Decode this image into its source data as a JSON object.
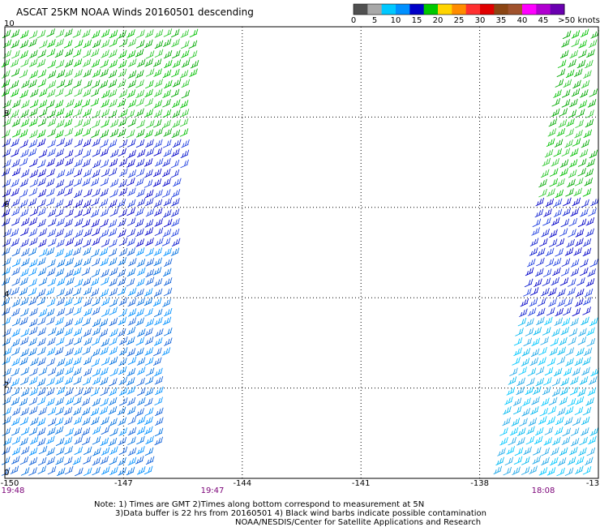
{
  "title": "ASCAT 25KM NOAA Winds 20160501 descending",
  "colorbar": {
    "labels": [
      "0",
      "5",
      "10",
      "15",
      "20",
      "25",
      "30",
      "35",
      "40",
      "45",
      ">50 knots"
    ],
    "colors": [
      "#505050",
      "#a8a8a8",
      "#00c8ff",
      "#0090ff",
      "#0000c8",
      "#00c800",
      "#ffd400",
      "#ff8c00",
      "#ff3030",
      "#e00000",
      "#8b4513",
      "#a0522d",
      "#ff00ff",
      "#b000d0",
      "#6a00b0"
    ]
  },
  "notes": {
    "line1": "Note: 1) Times are GMT 2)Times along bottom correspond to measurement at 5N",
    "line2": "3)Data buffer is 22 hrs from 20160501 4) Black wind barbs indicate possible contamination",
    "line3": "NOAA/NESDIS/Center for Satellite Applications and Research"
  },
  "times": {
    "t1": "19:48",
    "t2": "19:47",
    "t3": "18:08"
  },
  "chart_data": {
    "type": "scatter",
    "title": "ASCAT 25KM NOAA Winds 20160501 descending",
    "xlabel": "",
    "ylabel": "",
    "xlim": [
      -150,
      -135
    ],
    "ylim": [
      0,
      10
    ],
    "xticks": [
      "-150",
      "-147",
      "-144",
      "-141",
      "-138",
      "-13"
    ],
    "yticks": [
      "0",
      "2",
      "4",
      "6",
      "8",
      "10"
    ],
    "grid": true,
    "legend": "colorbar top-right",
    "swath_times": [
      "19:48",
      "19:47",
      "18:08"
    ],
    "series": [
      {
        "swath": "west",
        "lon_range": [
          -150,
          -146.1
        ],
        "wind_speed_knots_by_lat": [
          {
            "lat_range": [
              7.5,
              10
            ],
            "speed": [
              15,
              20
            ],
            "color": "green"
          },
          {
            "lat_range": [
              5,
              7.5
            ],
            "speed": [
              10,
              15
            ],
            "color": "dark blue"
          },
          {
            "lat_range": [
              0,
              5
            ],
            "speed": [
              5,
              15
            ],
            "color": "blue"
          }
        ]
      },
      {
        "swath": "east",
        "lon_range": [
          -137.9,
          -135
        ],
        "wind_speed_knots_by_lat": [
          {
            "lat_range": [
              6.3,
              10
            ],
            "speed": [
              15,
              20
            ],
            "color": "green"
          },
          {
            "lat_range": [
              3.5,
              6.3
            ],
            "speed": [
              10,
              15
            ],
            "color": "dark blue"
          },
          {
            "lat_range": [
              0,
              3.5
            ],
            "speed": [
              5,
              10
            ],
            "color": "cyan"
          }
        ]
      }
    ]
  }
}
